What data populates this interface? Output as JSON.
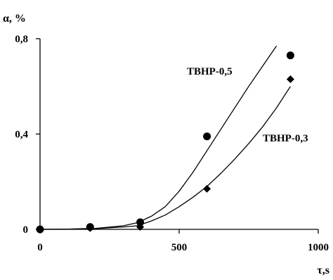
{
  "chart_data": {
    "type": "scatter",
    "xlabel": "τ,s",
    "ylabel": "α, %",
    "xlim": [
      0,
      1000
    ],
    "ylim": [
      0,
      0.8
    ],
    "x_ticks": [
      {
        "value": 0,
        "label": "0"
      },
      {
        "value": 500,
        "label": "500"
      },
      {
        "value": 1000,
        "label": "1000"
      }
    ],
    "y_ticks": [
      {
        "value": 0,
        "label": "0"
      },
      {
        "value": 0.4,
        "label": "0,4"
      },
      {
        "value": 0.8,
        "label": "0,8"
      }
    ],
    "grid": false,
    "series": [
      {
        "name": "TBHP-0,5",
        "marker": "circle",
        "points": [
          [
            0,
            0.0
          ],
          [
            180,
            0.01
          ],
          [
            360,
            0.03
          ],
          [
            600,
            0.39
          ],
          [
            900,
            0.73
          ]
        ],
        "fit_curve": [
          [
            0,
            0.0
          ],
          [
            100,
            0.001
          ],
          [
            200,
            0.004
          ],
          [
            300,
            0.015
          ],
          [
            350,
            0.028
          ],
          [
            400,
            0.055
          ],
          [
            450,
            0.095
          ],
          [
            500,
            0.16
          ],
          [
            550,
            0.24
          ],
          [
            600,
            0.33
          ],
          [
            650,
            0.42
          ],
          [
            700,
            0.51
          ],
          [
            750,
            0.6
          ],
          [
            800,
            0.685
          ],
          [
            850,
            0.77
          ]
        ]
      },
      {
        "name": "TBHP-0,3",
        "marker": "diamond",
        "points": [
          [
            0,
            0.0
          ],
          [
            180,
            0.005
          ],
          [
            360,
            0.01
          ],
          [
            600,
            0.17
          ],
          [
            900,
            0.63
          ]
        ],
        "fit_curve": [
          [
            0,
            0.0
          ],
          [
            100,
            0.0005
          ],
          [
            200,
            0.003
          ],
          [
            300,
            0.01
          ],
          [
            350,
            0.015
          ],
          [
            400,
            0.035
          ],
          [
            450,
            0.06
          ],
          [
            500,
            0.095
          ],
          [
            550,
            0.135
          ],
          [
            600,
            0.18
          ],
          [
            650,
            0.235
          ],
          [
            700,
            0.295
          ],
          [
            750,
            0.36
          ],
          [
            800,
            0.43
          ],
          [
            850,
            0.51
          ],
          [
            900,
            0.6
          ]
        ]
      }
    ]
  }
}
